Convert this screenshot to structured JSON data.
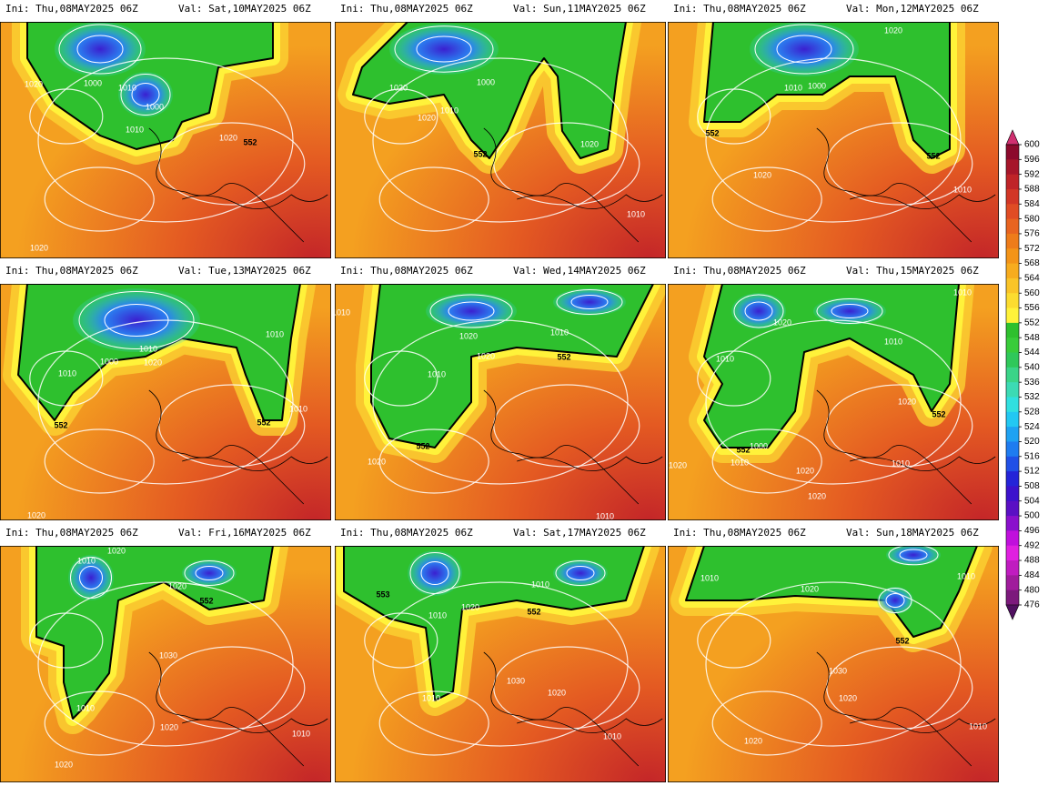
{
  "panels": [
    {
      "init": "Ini: Thu,08MAY2025 06Z",
      "valid": "Val: Sat,10MAY2025 06Z",
      "contour_labels": [
        "1020",
        "1000",
        "1010",
        "1000",
        "1010",
        "1020",
        "552",
        "1020"
      ]
    },
    {
      "init": "Ini: Thu,08MAY2025 06Z",
      "valid": "Val: Sun,11MAY2025 06Z",
      "contour_labels": [
        "1020",
        "1010",
        "1000",
        "1020",
        "552",
        "1020",
        "1010"
      ]
    },
    {
      "init": "Ini: Thu,08MAY2025 06Z",
      "valid": "Val: Mon,12MAY2025 06Z",
      "contour_labels": [
        "1020",
        "1010",
        "1000",
        "552",
        "1020",
        "552",
        "1010"
      ]
    },
    {
      "init": "Ini: Thu,08MAY2025 06Z",
      "valid": "Val: Tue,13MAY2025 06Z",
      "contour_labels": [
        "1010",
        "1010",
        "1000",
        "1020",
        "1010",
        "552",
        "552",
        "1010",
        "1020"
      ]
    },
    {
      "init": "Ini: Thu,08MAY2025 06Z",
      "valid": "Val: Wed,14MAY2025 06Z",
      "contour_labels": [
        "1010",
        "1020",
        "1010",
        "1020",
        "552",
        "1010",
        "552",
        "1020",
        "1010"
      ]
    },
    {
      "init": "Ini: Thu,08MAY2025 06Z",
      "valid": "Val: Thu,15MAY2025 06Z",
      "contour_labels": [
        "1010",
        "1020",
        "1010",
        "1010",
        "1020",
        "552",
        "1000",
        "552",
        "1010",
        "1020",
        "1020",
        "1010",
        "1020"
      ]
    },
    {
      "init": "Ini: Thu,08MAY2025 06Z",
      "valid": "Val: Fri,16MAY2025 06Z",
      "contour_labels": [
        "1010",
        "1020",
        "1020",
        "552",
        "1030",
        "1010",
        "1020",
        "1010",
        "1020"
      ]
    },
    {
      "init": "Ini: Thu,08MAY2025 06Z",
      "valid": "Val: Sat,17MAY2025 06Z",
      "contour_labels": [
        "553",
        "1020",
        "1010",
        "552",
        "1010",
        "1030",
        "1010",
        "1020",
        "1010"
      ]
    },
    {
      "init": "Ini: Thu,08MAY2025 06Z",
      "valid": "Val: Sun,18MAY2025 06Z",
      "contour_labels": [
        "1010",
        "1020",
        "1010",
        "552",
        "1030",
        "1020",
        "1010",
        "1020"
      ]
    }
  ],
  "colorbar": {
    "levels": [
      600,
      596,
      592,
      588,
      584,
      580,
      576,
      572,
      568,
      564,
      560,
      556,
      552,
      548,
      544,
      540,
      536,
      532,
      528,
      524,
      520,
      516,
      512,
      508,
      504,
      500,
      496,
      492,
      488,
      484,
      480,
      476
    ],
    "colors": [
      "#8c0a2c",
      "#a6162a",
      "#bf2428",
      "#d23626",
      "#e04c24",
      "#e86420",
      "#ee7c1a",
      "#f39418",
      "#f7ac1e",
      "#fac428",
      "#fcdc30",
      "#fff23a",
      "#2ec02e",
      "#38cc3a",
      "#2fc85a",
      "#3ad488",
      "#3cdab4",
      "#30e0e0",
      "#22c8f2",
      "#1ea2f2",
      "#1e7cf0",
      "#2050e6",
      "#2424d8",
      "#3c12cc",
      "#5a10c4",
      "#8a10cc",
      "#c010dc",
      "#e020e0",
      "#c01cc0",
      "#a01c9c",
      "#7c1a7c"
    ]
  }
}
